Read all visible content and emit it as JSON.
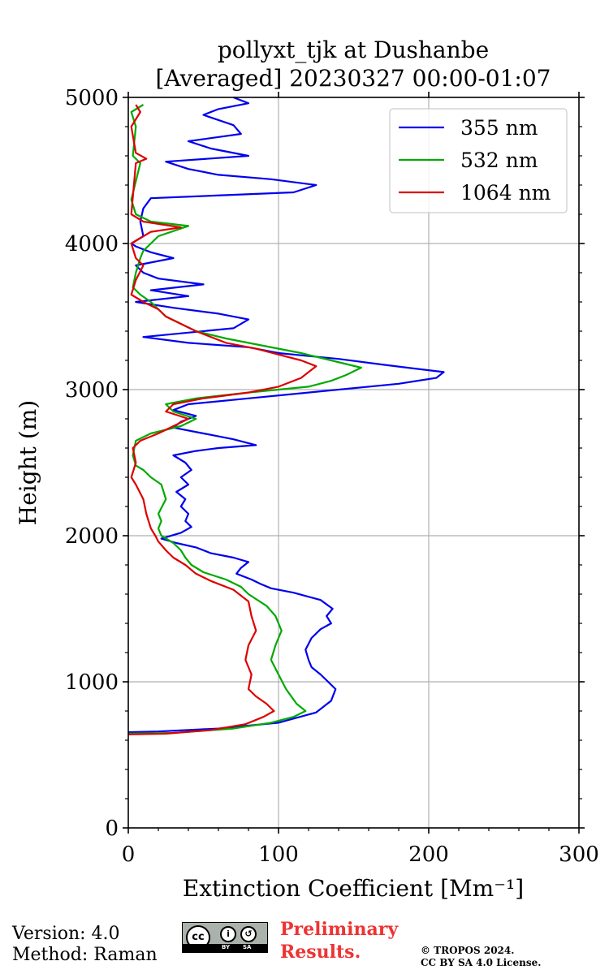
{
  "chart_data": {
    "type": "line",
    "title": [
      "pollyxt_tjk at Dushanbe",
      "[Averaged] 20230327 00:00-01:07"
    ],
    "xlabel": "Extinction Coefficient [Mm⁻¹]",
    "ylabel": "Height (m)",
    "xlim": [
      0,
      300
    ],
    "ylim": [
      0,
      5000
    ],
    "xticks": [
      "0",
      "100",
      "200",
      "300"
    ],
    "yticks": [
      "0",
      "1000",
      "2000",
      "3000",
      "4000",
      "5000"
    ],
    "grid": true,
    "legend_position": "top-right",
    "series": [
      {
        "name": "355 nm",
        "color": "#0000ee",
        "points": [
          [
            0,
            655
          ],
          [
            20,
            660
          ],
          [
            60,
            680
          ],
          [
            100,
            720
          ],
          [
            125,
            790
          ],
          [
            135,
            870
          ],
          [
            138,
            950
          ],
          [
            133,
            1000
          ],
          [
            128,
            1050
          ],
          [
            122,
            1100
          ],
          [
            120,
            1150
          ],
          [
            118,
            1220
          ],
          [
            122,
            1300
          ],
          [
            128,
            1360
          ],
          [
            135,
            1400
          ],
          [
            132,
            1450
          ],
          [
            136,
            1500
          ],
          [
            128,
            1560
          ],
          [
            110,
            1610
          ],
          [
            95,
            1640
          ],
          [
            88,
            1670
          ],
          [
            82,
            1700
          ],
          [
            72,
            1740
          ],
          [
            75,
            1780
          ],
          [
            80,
            1820
          ],
          [
            70,
            1850
          ],
          [
            55,
            1880
          ],
          [
            45,
            1920
          ],
          [
            32,
            1950
          ],
          [
            22,
            1980
          ],
          [
            35,
            2020
          ],
          [
            42,
            2060
          ],
          [
            38,
            2100
          ],
          [
            40,
            2150
          ],
          [
            35,
            2200
          ],
          [
            38,
            2250
          ],
          [
            32,
            2300
          ],
          [
            40,
            2350
          ],
          [
            35,
            2400
          ],
          [
            42,
            2450
          ],
          [
            38,
            2500
          ],
          [
            30,
            2550
          ],
          [
            45,
            2580
          ],
          [
            60,
            2600
          ],
          [
            85,
            2620
          ],
          [
            70,
            2660
          ],
          [
            50,
            2700
          ],
          [
            30,
            2740
          ],
          [
            35,
            2780
          ],
          [
            45,
            2820
          ],
          [
            30,
            2860
          ],
          [
            40,
            2900
          ],
          [
            80,
            2940
          ],
          [
            120,
            2980
          ],
          [
            180,
            3040
          ],
          [
            205,
            3080
          ],
          [
            210,
            3120
          ],
          [
            170,
            3170
          ],
          [
            140,
            3210
          ],
          [
            100,
            3250
          ],
          [
            80,
            3290
          ],
          [
            40,
            3320
          ],
          [
            10,
            3360
          ],
          [
            70,
            3420
          ],
          [
            80,
            3480
          ],
          [
            60,
            3520
          ],
          [
            30,
            3560
          ],
          [
            5,
            3600
          ],
          [
            40,
            3640
          ],
          [
            15,
            3680
          ],
          [
            50,
            3720
          ],
          [
            20,
            3760
          ],
          [
            10,
            3800
          ],
          [
            5,
            3850
          ],
          [
            30,
            3900
          ],
          [
            15,
            3940
          ],
          [
            5,
            3980
          ],
          [
            2,
            4000
          ],
          [
            10,
            4050
          ],
          [
            8,
            4150
          ],
          [
            10,
            4240
          ],
          [
            15,
            4310
          ],
          [
            110,
            4350
          ],
          [
            125,
            4400
          ],
          [
            95,
            4440
          ],
          [
            60,
            4470
          ],
          [
            40,
            4510
          ],
          [
            25,
            4560
          ],
          [
            80,
            4600
          ],
          [
            55,
            4650
          ],
          [
            40,
            4700
          ],
          [
            75,
            4750
          ],
          [
            70,
            4810
          ],
          [
            50,
            4880
          ],
          [
            60,
            4920
          ],
          [
            80,
            4960
          ],
          [
            70,
            5000
          ]
        ]
      },
      {
        "name": "532 nm",
        "color": "#00aa00",
        "points": [
          [
            0,
            645
          ],
          [
            30,
            650
          ],
          [
            70,
            680
          ],
          [
            95,
            720
          ],
          [
            110,
            760
          ],
          [
            118,
            800
          ],
          [
            112,
            850
          ],
          [
            105,
            950
          ],
          [
            100,
            1050
          ],
          [
            95,
            1150
          ],
          [
            98,
            1250
          ],
          [
            102,
            1350
          ],
          [
            98,
            1450
          ],
          [
            92,
            1520
          ],
          [
            80,
            1600
          ],
          [
            75,
            1650
          ],
          [
            65,
            1700
          ],
          [
            50,
            1750
          ],
          [
            42,
            1800
          ],
          [
            38,
            1850
          ],
          [
            35,
            1900
          ],
          [
            30,
            1950
          ],
          [
            22,
            2000
          ],
          [
            20,
            2050
          ],
          [
            22,
            2100
          ],
          [
            20,
            2150
          ],
          [
            25,
            2250
          ],
          [
            22,
            2350
          ],
          [
            15,
            2400
          ],
          [
            10,
            2450
          ],
          [
            5,
            2480
          ],
          [
            3,
            2550
          ],
          [
            5,
            2650
          ],
          [
            15,
            2700
          ],
          [
            35,
            2750
          ],
          [
            45,
            2800
          ],
          [
            30,
            2850
          ],
          [
            25,
            2900
          ],
          [
            45,
            2940
          ],
          [
            80,
            2980
          ],
          [
            120,
            3020
          ],
          [
            135,
            3060
          ],
          [
            145,
            3100
          ],
          [
            155,
            3150
          ],
          [
            135,
            3200
          ],
          [
            115,
            3250
          ],
          [
            90,
            3300
          ],
          [
            65,
            3350
          ],
          [
            45,
            3400
          ],
          [
            35,
            3450
          ],
          [
            25,
            3500
          ],
          [
            20,
            3550
          ],
          [
            15,
            3600
          ],
          [
            8,
            3650
          ],
          [
            3,
            3700
          ],
          [
            5,
            3800
          ],
          [
            8,
            3900
          ],
          [
            10,
            3950
          ],
          [
            20,
            4050
          ],
          [
            40,
            4120
          ],
          [
            15,
            4150
          ],
          [
            5,
            4200
          ],
          [
            2,
            4300
          ],
          [
            8,
            4550
          ],
          [
            3,
            4600
          ],
          [
            5,
            4800
          ],
          [
            2,
            4900
          ],
          [
            10,
            4950
          ]
        ]
      },
      {
        "name": "1064 nm",
        "color": "#dd0000",
        "points": [
          [
            0,
            640
          ],
          [
            25,
            645
          ],
          [
            55,
            670
          ],
          [
            78,
            710
          ],
          [
            90,
            760
          ],
          [
            97,
            800
          ],
          [
            92,
            850
          ],
          [
            85,
            900
          ],
          [
            80,
            950
          ],
          [
            82,
            1050
          ],
          [
            78,
            1150
          ],
          [
            80,
            1250
          ],
          [
            85,
            1350
          ],
          [
            82,
            1450
          ],
          [
            80,
            1550
          ],
          [
            70,
            1630
          ],
          [
            55,
            1690
          ],
          [
            45,
            1740
          ],
          [
            38,
            1800
          ],
          [
            30,
            1850
          ],
          [
            25,
            1900
          ],
          [
            20,
            1960
          ],
          [
            18,
            2000
          ],
          [
            15,
            2050
          ],
          [
            12,
            2150
          ],
          [
            10,
            2250
          ],
          [
            5,
            2350
          ],
          [
            2,
            2400
          ],
          [
            5,
            2500
          ],
          [
            3,
            2600
          ],
          [
            8,
            2650
          ],
          [
            20,
            2700
          ],
          [
            30,
            2750
          ],
          [
            40,
            2800
          ],
          [
            25,
            2850
          ],
          [
            30,
            2900
          ],
          [
            50,
            2940
          ],
          [
            80,
            2980
          ],
          [
            100,
            3020
          ],
          [
            115,
            3080
          ],
          [
            125,
            3160
          ],
          [
            115,
            3200
          ],
          [
            100,
            3240
          ],
          [
            85,
            3280
          ],
          [
            65,
            3320
          ],
          [
            45,
            3400
          ],
          [
            35,
            3450
          ],
          [
            25,
            3500
          ],
          [
            20,
            3550
          ],
          [
            10,
            3600
          ],
          [
            2,
            3650
          ],
          [
            5,
            3750
          ],
          [
            10,
            3850
          ],
          [
            5,
            3900
          ],
          [
            2,
            4000
          ],
          [
            15,
            4080
          ],
          [
            35,
            4110
          ],
          [
            10,
            4150
          ],
          [
            2,
            4200
          ],
          [
            5,
            4550
          ],
          [
            12,
            4580
          ],
          [
            5,
            4620
          ],
          [
            2,
            4800
          ],
          [
            8,
            4900
          ],
          [
            5,
            4950
          ]
        ]
      }
    ]
  },
  "footer": {
    "version": "Version: 4.0",
    "method": "Method: Raman",
    "license_badge": {
      "cc": "cc",
      "by": "BY",
      "sa": "SA"
    },
    "preliminary": [
      "Preliminary",
      "Results."
    ],
    "copyright": [
      "© TROPOS 2024.",
      "CC BY SA 4.0 License."
    ]
  }
}
